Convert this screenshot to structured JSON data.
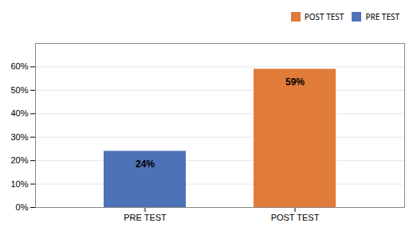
{
  "chart_data": {
    "type": "bar",
    "categories": [
      "PRE TEST",
      "POST TEST"
    ],
    "series": [
      {
        "name": "POST TEST",
        "color": "#e07b39",
        "values": [
          null,
          59
        ],
        "value_labels": [
          null,
          "59%"
        ]
      },
      {
        "name": "PRE TEST",
        "color": "#4e72b8",
        "values": [
          24,
          null
        ],
        "value_labels": [
          "24%",
          null
        ]
      }
    ],
    "data_labels": true,
    "ylim": [
      0,
      70
    ],
    "yticks": [
      {
        "value": 0,
        "label": "0%"
      },
      {
        "value": 10,
        "label": "10%"
      },
      {
        "value": 20,
        "label": "20%"
      },
      {
        "value": 30,
        "label": "30%"
      },
      {
        "value": 40,
        "label": "40%"
      },
      {
        "value": 50,
        "label": "50%"
      },
      {
        "value": 60,
        "label": "60%"
      }
    ],
    "grid": true,
    "legend": "upper right"
  }
}
